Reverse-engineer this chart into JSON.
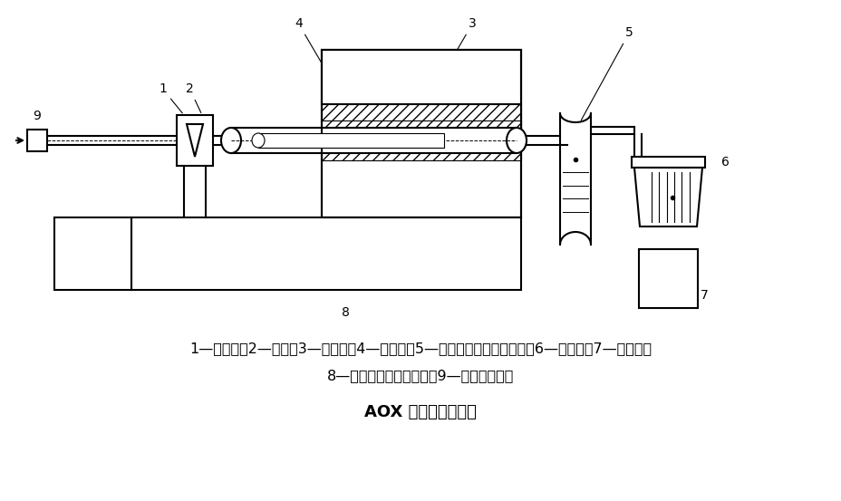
{
  "title": "AOX 测定装置原理图",
  "caption_line1": "1—进样口；2—样品；3—燃烧炉；4—燃烧管；5—干燥管（注入浓硫酸）；6—滴定池；7—搅拌器；",
  "caption_line2": "8—气流、温度控制单元；9—助燃气进口。",
  "bg_color": "#ffffff",
  "line_color": "#000000",
  "label_color": "#000000",
  "title_fontsize": 13,
  "caption_fontsize": 11.5
}
